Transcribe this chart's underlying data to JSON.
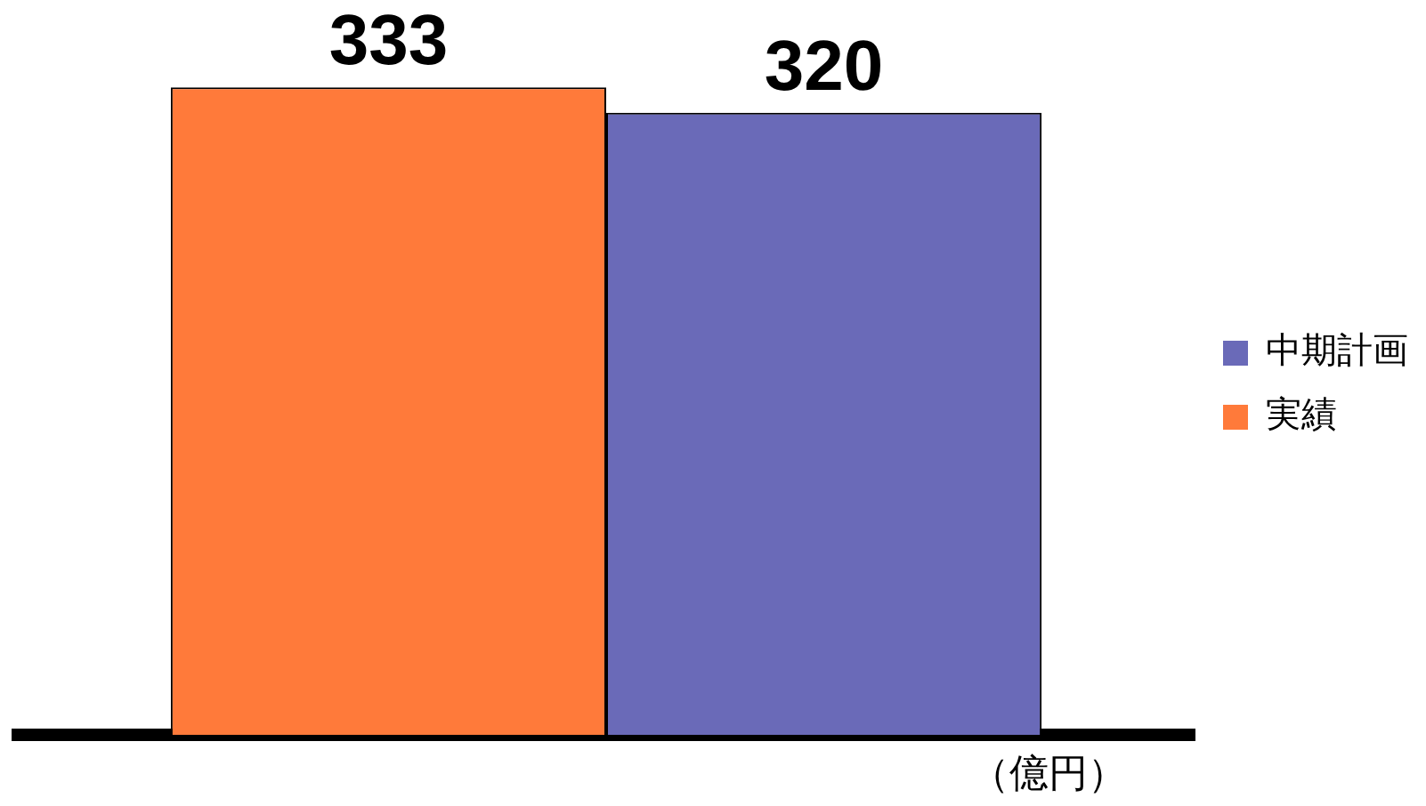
{
  "chart_data": {
    "type": "bar",
    "categories": [
      null
    ],
    "series": [
      {
        "name": "実績",
        "color": "#ff7a3a",
        "values": [
          333
        ]
      },
      {
        "name": "中期計画",
        "color": "#6a6ab8",
        "values": [
          320
        ]
      }
    ],
    "data_labels": true,
    "legend": "right",
    "annotations": [
      "（億円）"
    ]
  }
}
